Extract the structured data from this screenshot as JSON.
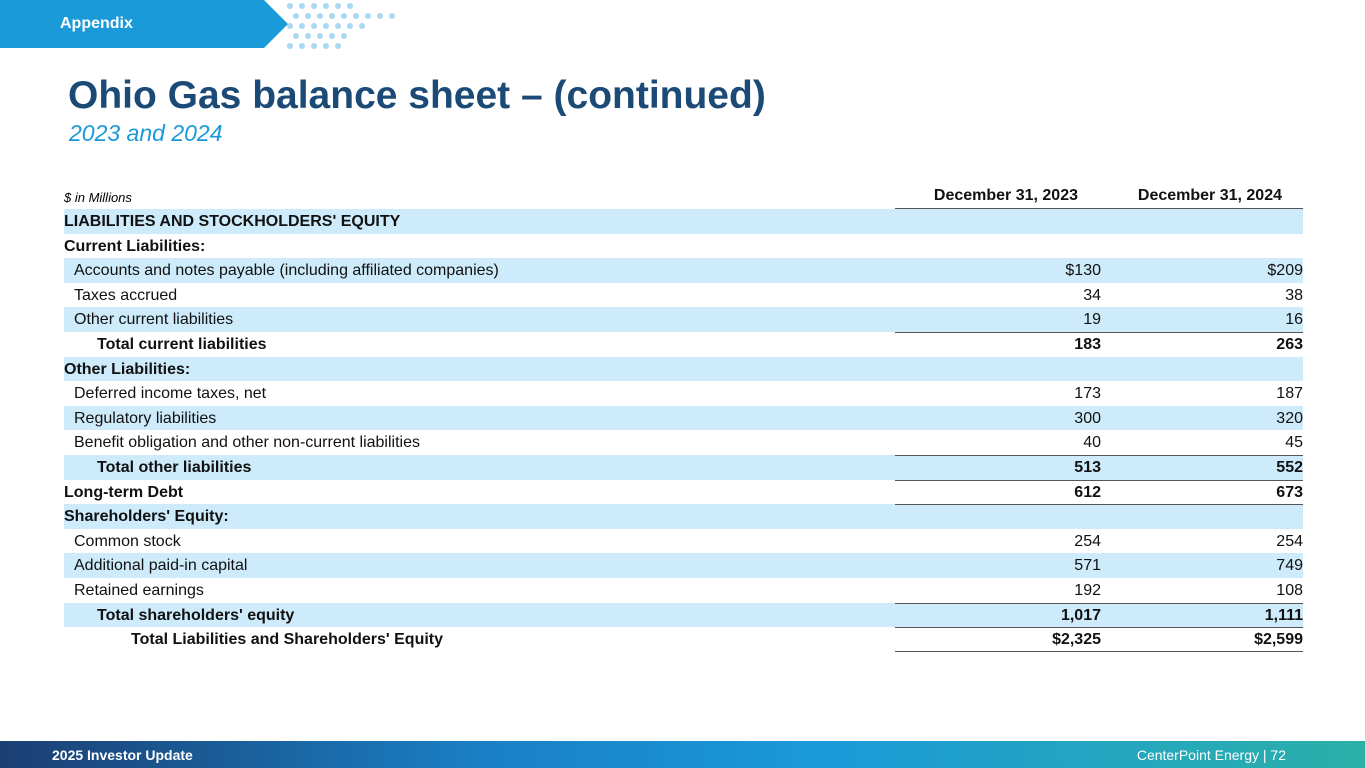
{
  "header": {
    "tag": "Appendix",
    "title": "Ohio Gas balance sheet – (continued)",
    "subtitle": "2023 and 2024"
  },
  "table": {
    "units": "$ in Millions",
    "columns": [
      "December 31, 2023",
      "December 31, 2024"
    ],
    "rows": [
      {
        "label": "LIABILITIES AND STOCKHOLDERS' EQUITY",
        "v1": "",
        "v2": ""
      },
      {
        "label": "Current Liabilities:",
        "v1": "",
        "v2": ""
      },
      {
        "label": "Accounts and notes payable (including affiliated companies)",
        "v1": "$130",
        "v2": "$209"
      },
      {
        "label": "Taxes accrued",
        "v1": "34",
        "v2": "38"
      },
      {
        "label": "Other current liabilities",
        "v1": "19",
        "v2": "16"
      },
      {
        "label": "Total current liabilities",
        "v1": "183",
        "v2": "263"
      },
      {
        "label": "Other Liabilities:",
        "v1": "",
        "v2": ""
      },
      {
        "label": "Deferred income taxes, net",
        "v1": "173",
        "v2": "187"
      },
      {
        "label": "Regulatory liabilities",
        "v1": "300",
        "v2": "320"
      },
      {
        "label": "Benefit obligation and other non-current liabilities",
        "v1": "40",
        "v2": "45"
      },
      {
        "label": "Total other liabilities",
        "v1": "513",
        "v2": "552"
      },
      {
        "label": "Long-term Debt",
        "v1": "612",
        "v2": "673"
      },
      {
        "label": "Shareholders' Equity:",
        "v1": "",
        "v2": ""
      },
      {
        "label": "Common stock",
        "v1": "254",
        "v2": "254"
      },
      {
        "label": "Additional paid-in capital",
        "v1": "571",
        "v2": "749"
      },
      {
        "label": "Retained earnings",
        "v1": "192",
        "v2": "108"
      },
      {
        "label": "Total shareholders' equity",
        "v1": "1,017",
        "v2": "1,111"
      },
      {
        "label": "Total Liabilities and Shareholders' Equity",
        "v1": "$2,325",
        "v2": "$2,599"
      }
    ]
  },
  "footer": {
    "left": "2025 Investor Update",
    "right": "CenterPoint Energy | 72"
  },
  "colors": {
    "title": "#1b4a77",
    "accent": "#1a9ad9",
    "row_shade": "#cdebfb"
  }
}
